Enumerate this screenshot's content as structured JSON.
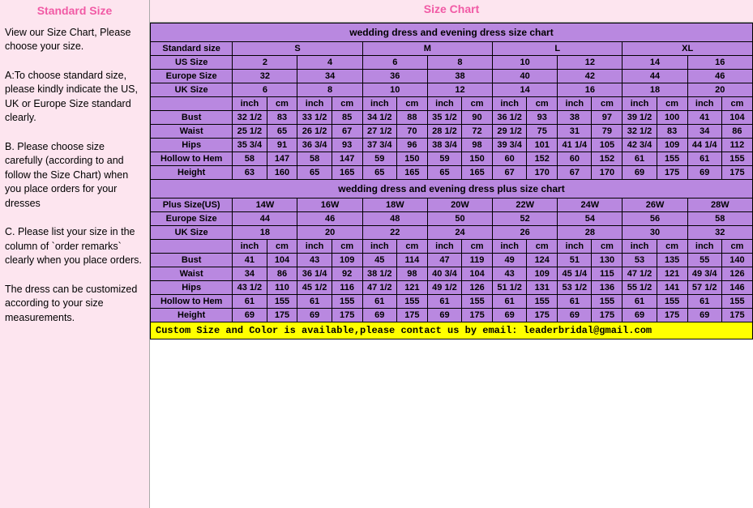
{
  "sidebar": {
    "title": "Standard Size",
    "p1": "View our Size Chart, Please choose your size.",
    "p2": "A:To choose standard size, please kindly indicate the US, UK or Europe Size standard clearly.",
    "p3": "B. Please choose size carefully (according to and follow the Size Chart) when you place orders for your dresses",
    "p4": "C. Please list your size in the column of `order remarks` clearly when you place orders.",
    "p5": "The dress can be customized according to your size measurements."
  },
  "main": {
    "title": "Size Chart",
    "chart_title_1": "wedding dress and evening dress size chart",
    "chart_title_2": "wedding dress and evening dress plus size chart",
    "custom_note": "Custom Size and Color is available,please contact us by email:  leaderbridal@gmail.com",
    "colors": {
      "table_bg": "#b988e0",
      "note_bg": "#ffff00",
      "pink_bg": "#fde5ef",
      "accent": "#f15aa5"
    },
    "labels": {
      "standard_size": "Standard size",
      "us_size": "US Size",
      "europe_size": "Europe Size",
      "uk_size": "UK Size",
      "plus_size": "Plus Size(US)",
      "inch": "inch",
      "cm": "cm",
      "bust": "Bust",
      "waist": "Waist",
      "hips": "Hips",
      "hollow": "Hollow to Hem",
      "height": "Height"
    },
    "s": {
      "std": [
        "S",
        "M",
        "L",
        "XL"
      ],
      "us": [
        "2",
        "4",
        "6",
        "8",
        "10",
        "12",
        "14",
        "16"
      ],
      "eu": [
        "32",
        "34",
        "36",
        "38",
        "40",
        "42",
        "44",
        "46"
      ],
      "uk": [
        "6",
        "8",
        "10",
        "12",
        "14",
        "16",
        "18",
        "20"
      ],
      "bust": [
        "32 1/2",
        "83",
        "33 1/2",
        "85",
        "34 1/2",
        "88",
        "35 1/2",
        "90",
        "36 1/2",
        "93",
        "38",
        "97",
        "39 1/2",
        "100",
        "41",
        "104"
      ],
      "waist": [
        "25 1/2",
        "65",
        "26 1/2",
        "67",
        "27 1/2",
        "70",
        "28 1/2",
        "72",
        "29 1/2",
        "75",
        "31",
        "79",
        "32 1/2",
        "83",
        "34",
        "86"
      ],
      "hips": [
        "35 3/4",
        "91",
        "36 3/4",
        "93",
        "37 3/4",
        "96",
        "38 3/4",
        "98",
        "39 3/4",
        "101",
        "41 1/4",
        "105",
        "42 3/4",
        "109",
        "44 1/4",
        "112"
      ],
      "hollow": [
        "58",
        "147",
        "58",
        "147",
        "59",
        "150",
        "59",
        "150",
        "60",
        "152",
        "60",
        "152",
        "61",
        "155",
        "61",
        "155"
      ],
      "height": [
        "63",
        "160",
        "65",
        "165",
        "65",
        "165",
        "65",
        "165",
        "67",
        "170",
        "67",
        "170",
        "69",
        "175",
        "69",
        "175"
      ]
    },
    "p": {
      "us": [
        "14W",
        "16W",
        "18W",
        "20W",
        "22W",
        "24W",
        "26W",
        "28W"
      ],
      "eu": [
        "44",
        "46",
        "48",
        "50",
        "52",
        "54",
        "56",
        "58"
      ],
      "uk": [
        "18",
        "20",
        "22",
        "24",
        "26",
        "28",
        "30",
        "32"
      ],
      "bust": [
        "41",
        "104",
        "43",
        "109",
        "45",
        "114",
        "47",
        "119",
        "49",
        "124",
        "51",
        "130",
        "53",
        "135",
        "55",
        "140"
      ],
      "waist": [
        "34",
        "86",
        "36 1/4",
        "92",
        "38 1/2",
        "98",
        "40 3/4",
        "104",
        "43",
        "109",
        "45 1/4",
        "115",
        "47 1/2",
        "121",
        "49 3/4",
        "126"
      ],
      "hips": [
        "43 1/2",
        "110",
        "45 1/2",
        "116",
        "47 1/2",
        "121",
        "49 1/2",
        "126",
        "51 1/2",
        "131",
        "53 1/2",
        "136",
        "55 1/2",
        "141",
        "57 1/2",
        "146"
      ],
      "hollow": [
        "61",
        "155",
        "61",
        "155",
        "61",
        "155",
        "61",
        "155",
        "61",
        "155",
        "61",
        "155",
        "61",
        "155",
        "61",
        "155"
      ],
      "height": [
        "69",
        "175",
        "69",
        "175",
        "69",
        "175",
        "69",
        "175",
        "69",
        "175",
        "69",
        "175",
        "69",
        "175",
        "69",
        "175"
      ]
    }
  }
}
